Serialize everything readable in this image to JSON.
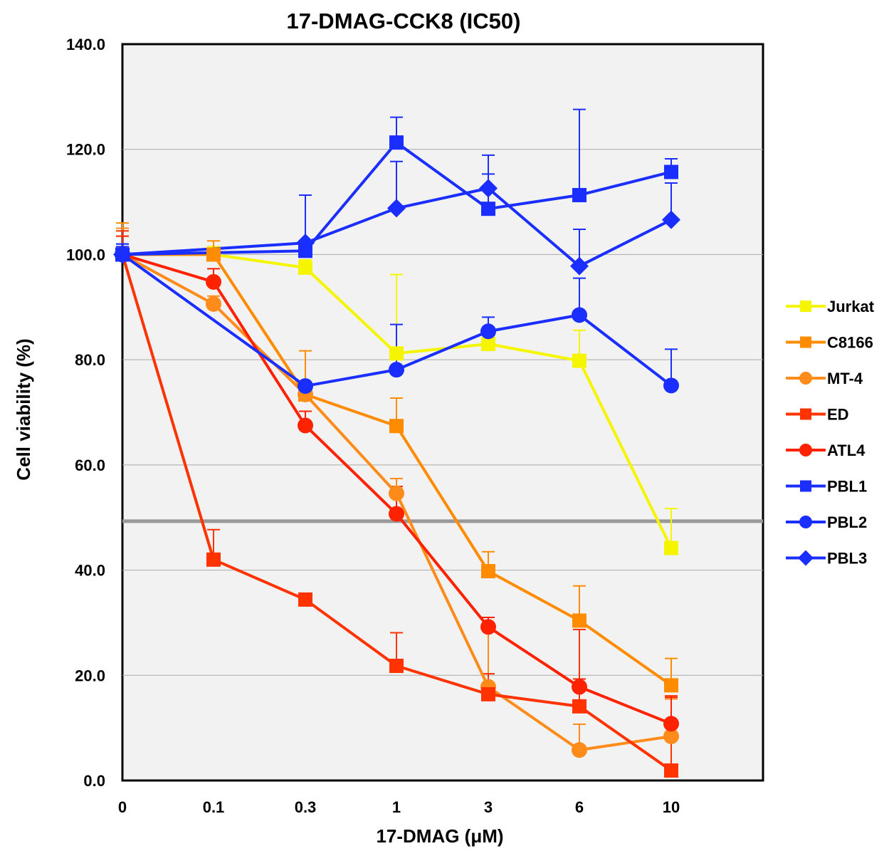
{
  "chart_data": {
    "type": "line",
    "title": "17-DMAG-CCK8 (IC50)",
    "xlabel": "17-DMAG (μM)",
    "ylabel": "Cell viability (%)",
    "categories": [
      "0",
      "0.1",
      "0.3",
      "1",
      "3",
      "6",
      "10"
    ],
    "ylim": [
      0,
      140
    ],
    "yticks": [
      "0.0",
      "20.0",
      "40.0",
      "60.0",
      "80.0",
      "100.0",
      "120.0",
      "140.0"
    ],
    "grid": true,
    "legend_position": "right",
    "reference_line": {
      "y": 49.3,
      "color": "#999999"
    },
    "series": [
      {
        "name": "Jurkat",
        "color": "#f5f500",
        "marker": "square",
        "values": [
          100.0,
          100.0,
          97.5,
          81.2,
          83.0,
          79.8,
          44.2
        ],
        "errors": [
          3.5,
          1.5,
          1.5,
          15.0,
          3.0,
          5.8,
          7.5
        ]
      },
      {
        "name": "C8166",
        "color": "#ff8c00",
        "marker": "square",
        "values": [
          100.0,
          100.0,
          73.4,
          67.4,
          39.8,
          30.4,
          18.1
        ],
        "errors": [
          6.0,
          2.6,
          8.3,
          5.3,
          3.7,
          6.6,
          5.1
        ]
      },
      {
        "name": "MT-4",
        "color": "#ff8c1a",
        "marker": "circle",
        "values": [
          100.0,
          90.6,
          73.4,
          54.6,
          17.8,
          5.8,
          8.4
        ],
        "errors": [
          5.0,
          1.5,
          1.5,
          2.8,
          11.3,
          4.9,
          7.1
        ]
      },
      {
        "name": "ED",
        "color": "#ff3300",
        "marker": "square",
        "values": [
          100.0,
          42.0,
          34.4,
          21.8,
          16.4,
          14.1,
          1.9
        ],
        "errors": [
          4.5,
          5.7,
          0.5,
          6.3,
          3.9,
          14.6,
          14.2
        ]
      },
      {
        "name": "ATL4",
        "color": "#ff2200",
        "marker": "circle",
        "values": [
          100.0,
          94.8,
          67.5,
          50.7,
          29.2,
          17.8,
          10.8
        ],
        "errors": [
          3.5,
          2.5,
          2.7,
          5.2,
          1.8,
          1.5,
          5.0
        ]
      },
      {
        "name": "PBL1",
        "color": "#1a2eff",
        "marker": "square",
        "values": [
          100.0,
          null,
          100.7,
          121.3,
          108.7,
          111.3,
          115.7
        ],
        "errors": [
          2.0,
          null,
          1.5,
          4.8,
          6.6,
          16.3,
          2.5
        ]
      },
      {
        "name": "PBL2",
        "color": "#1a2eff",
        "marker": "circle",
        "values": [
          100.0,
          null,
          75.0,
          78.1,
          85.4,
          88.5,
          75.1
        ],
        "errors": [
          1.5,
          null,
          0.5,
          8.6,
          2.7,
          7.0,
          6.9
        ]
      },
      {
        "name": "PBL3",
        "color": "#1a2eff",
        "marker": "diamond",
        "values": [
          100.0,
          null,
          102.2,
          108.8,
          112.6,
          97.8,
          106.6
        ],
        "errors": [
          2.0,
          null,
          9.1,
          8.9,
          6.3,
          7.0,
          7.0
        ]
      }
    ]
  }
}
